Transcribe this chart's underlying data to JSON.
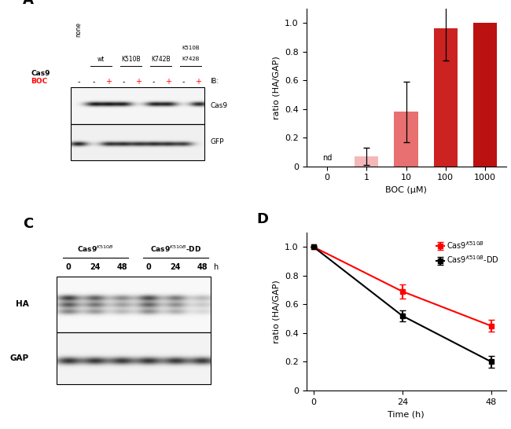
{
  "panel_B": {
    "categories": [
      "0",
      "1",
      "10",
      "100",
      "1000"
    ],
    "values": [
      0,
      0.07,
      0.38,
      0.96,
      1.0
    ],
    "errors": [
      0,
      0.06,
      0.21,
      0.22,
      0.0
    ],
    "bar_colors": [
      "#f5b8b8",
      "#f5b8b8",
      "#e87070",
      "#cc2222",
      "#bb1111"
    ],
    "xlabel": "BOC (μM)",
    "ylabel": "ratio (HA/GAP)",
    "ylim": [
      0,
      1.1
    ],
    "nd_label": "nd"
  },
  "panel_D": {
    "x": [
      0,
      24,
      48
    ],
    "red_values": [
      1.0,
      0.69,
      0.45
    ],
    "black_values": [
      1.0,
      0.52,
      0.2
    ],
    "red_errors": [
      0.0,
      0.05,
      0.04
    ],
    "black_errors": [
      0.0,
      0.04,
      0.04
    ],
    "xlabel": "Time (h)",
    "ylabel": "ratio (HA/GAP)",
    "ylim": [
      0,
      1.1
    ],
    "red_label": "Cas9$^{K510B}$",
    "black_label": "Cas9$^{K510B}$-DD"
  },
  "bg_color": "#ffffff"
}
